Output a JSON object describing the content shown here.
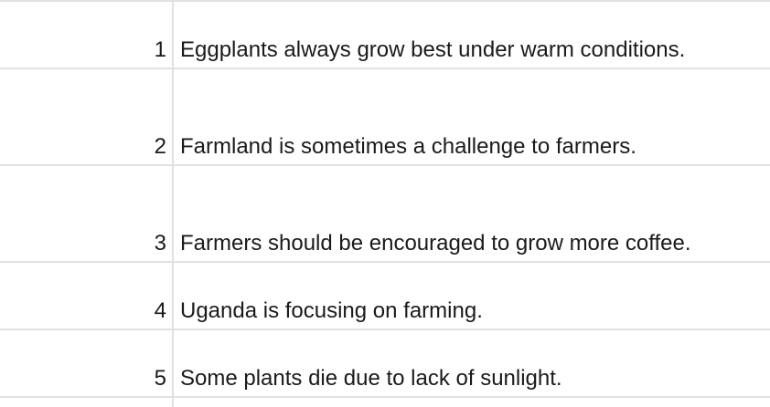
{
  "rows": [
    {
      "number": "1",
      "text": "Eggplants always grow best under warm conditions."
    },
    {
      "number": "2",
      "text": "Farmland is sometimes a challenge to farmers."
    },
    {
      "number": "3",
      "text": "Farmers should be encouraged to grow more coffee."
    },
    {
      "number": "4",
      "text": "Uganda is focusing on farming."
    },
    {
      "number": "5",
      "text": "Some plants die due to lack of sunlight."
    }
  ],
  "colors": {
    "gridline": "#e1e1e1",
    "text": "#1a1a1a",
    "background": "#ffffff"
  }
}
